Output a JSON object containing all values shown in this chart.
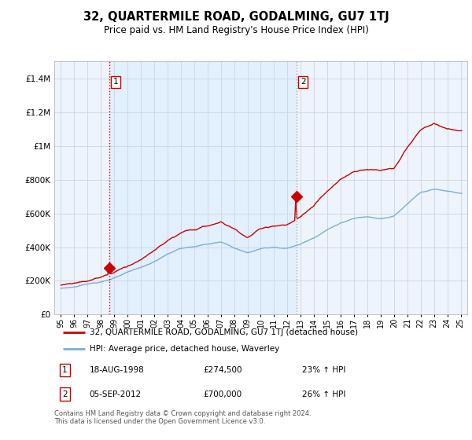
{
  "title": "32, QUARTERMILE ROAD, GODALMING, GU7 1TJ",
  "subtitle": "Price paid vs. HM Land Registry's House Price Index (HPI)",
  "legend_line1": "32, QUARTERMILE ROAD, GODALMING, GU7 1TJ (detached house)",
  "legend_line2": "HPI: Average price, detached house, Waverley",
  "sale1_date": "18-AUG-1998",
  "sale1_price": "£274,500",
  "sale1_hpi": "23% ↑ HPI",
  "sale2_date": "05-SEP-2012",
  "sale2_price": "£700,000",
  "sale2_hpi": "26% ↑ HPI",
  "footer": "Contains HM Land Registry data © Crown copyright and database right 2024.\nThis data is licensed under the Open Government Licence v3.0.",
  "ylim": [
    0,
    1500000
  ],
  "yticks": [
    0,
    200000,
    400000,
    600000,
    800000,
    1000000,
    1200000,
    1400000
  ],
  "xlim_start": 1994.5,
  "xlim_end": 2025.5,
  "sale1_x": 1998.63,
  "sale1_y": 274500,
  "sale2_x": 2012.67,
  "sale2_y": 700000,
  "red_color": "#cc0000",
  "blue_color": "#7aaed6",
  "shade_color": "#ddeeff",
  "grid_color": "#d0d8e8",
  "background_color": "#eef4fb"
}
